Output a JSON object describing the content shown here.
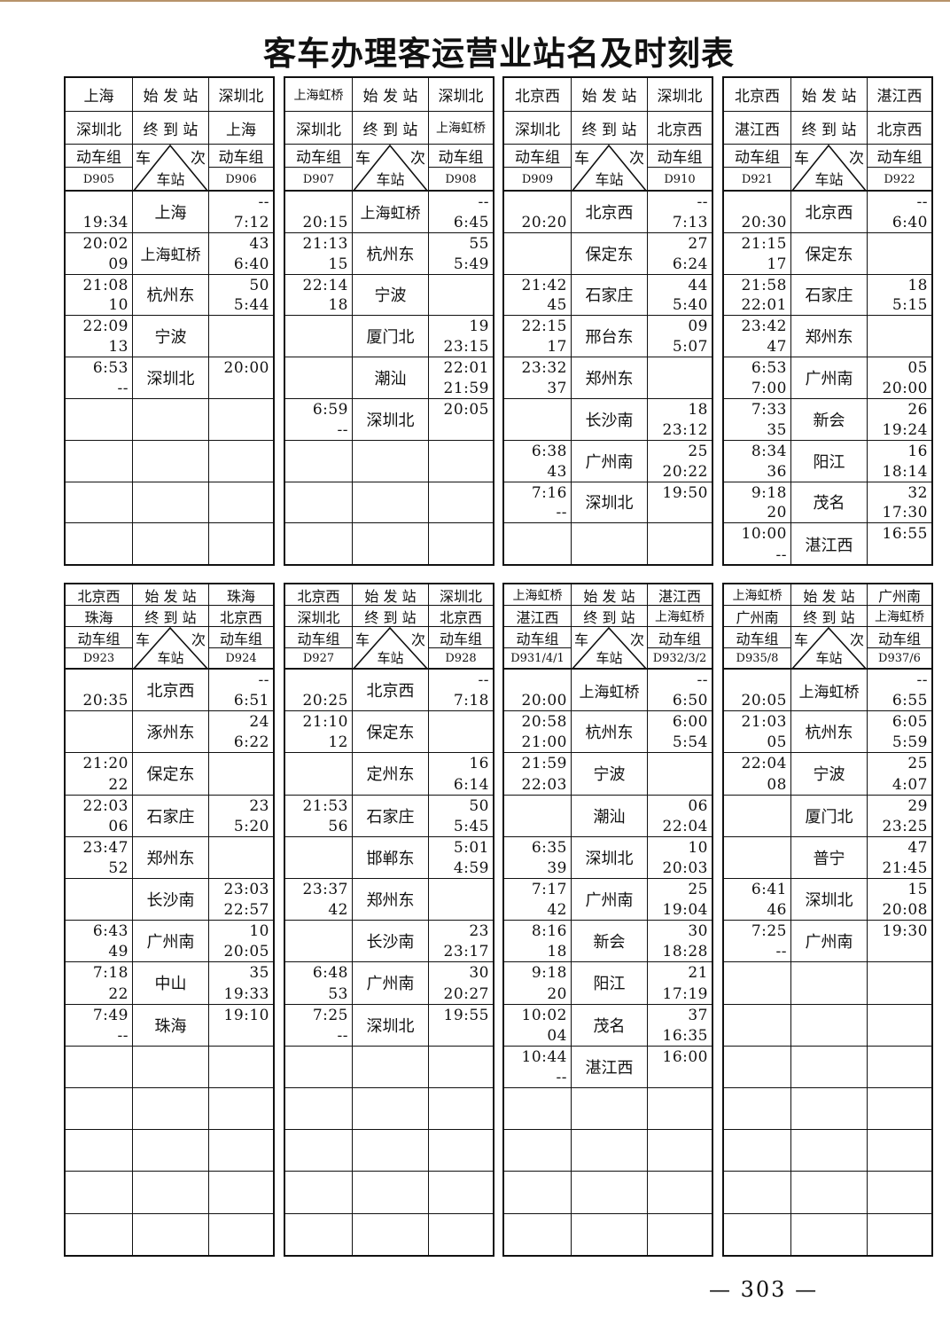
{
  "page": {
    "title": "客车办理客运营业站名及时刻表",
    "page_number": "— 303 —",
    "accent_rule_color": "#b7936a"
  },
  "labels": {
    "origin": "始 发 站",
    "destination": "终 到 站",
    "emu": "动车组",
    "train": "车",
    "times": "次",
    "station": "车站"
  },
  "tables": [
    {
      "origin_left": "上海",
      "origin_right": "深圳北",
      "dest_left": "深圳北",
      "dest_right": "上海",
      "train_left": "D905",
      "train_right": "D906",
      "rows": [
        [
          "",
          "19:34",
          "上海",
          "--",
          "7:12"
        ],
        [
          "20:02",
          "09",
          "上海虹桥",
          "43",
          "6:40"
        ],
        [
          "21:08",
          "10",
          "杭州东",
          "50",
          "5:44"
        ],
        [
          "22:09",
          "13",
          "宁波",
          "",
          ""
        ],
        [
          "6:53",
          "--",
          "深圳北",
          "20:00",
          ""
        ]
      ]
    },
    {
      "origin_left": "上海虹桥",
      "origin_right": "深圳北",
      "dest_left": "深圳北",
      "dest_right": "上海虹桥",
      "train_left": "D907",
      "train_right": "D908",
      "rows": [
        [
          "",
          "20:15",
          "上海虹桥",
          "--",
          "6:45"
        ],
        [
          "21:13",
          "15",
          "杭州东",
          "55",
          "5:49"
        ],
        [
          "22:14",
          "18",
          "宁波",
          "",
          ""
        ],
        [
          "",
          "",
          "厦门北",
          "19",
          "23:15"
        ],
        [
          "",
          "",
          "潮汕",
          "22:01",
          "21:59"
        ],
        [
          "6:59",
          "--",
          "深圳北",
          "20:05",
          ""
        ]
      ]
    },
    {
      "origin_left": "北京西",
      "origin_right": "深圳北",
      "dest_left": "深圳北",
      "dest_right": "北京西",
      "train_left": "D909",
      "train_right": "D910",
      "rows": [
        [
          "",
          "20:20",
          "北京西",
          "--",
          "7:13"
        ],
        [
          "",
          "",
          "保定东",
          "27",
          "6:24"
        ],
        [
          "21:42",
          "45",
          "石家庄",
          "44",
          "5:40"
        ],
        [
          "22:15",
          "17",
          "邢台东",
          "09",
          "5:07"
        ],
        [
          "23:32",
          "37",
          "郑州东",
          "",
          ""
        ],
        [
          "",
          "",
          "长沙南",
          "18",
          "23:12"
        ],
        [
          "6:38",
          "43",
          "广州南",
          "25",
          "20:22"
        ],
        [
          "7:16",
          "--",
          "深圳北",
          "19:50",
          ""
        ]
      ]
    },
    {
      "origin_left": "北京西",
      "origin_right": "湛江西",
      "dest_left": "湛江西",
      "dest_right": "北京西",
      "train_left": "D921",
      "train_right": "D922",
      "rows": [
        [
          "",
          "20:30",
          "北京西",
          "--",
          "6:40"
        ],
        [
          "21:15",
          "17",
          "保定东",
          "",
          ""
        ],
        [
          "21:58",
          "22:01",
          "石家庄",
          "18",
          "5:15"
        ],
        [
          "23:42",
          "47",
          "郑州东",
          "",
          ""
        ],
        [
          "6:53",
          "7:00",
          "广州南",
          "05",
          "20:00"
        ],
        [
          "7:33",
          "35",
          "新会",
          "26",
          "19:24"
        ],
        [
          "8:34",
          "36",
          "阳江",
          "16",
          "18:14"
        ],
        [
          "9:18",
          "20",
          "茂名",
          "32",
          "17:30"
        ],
        [
          "10:00",
          "--",
          "湛江西",
          "16:55",
          ""
        ]
      ]
    },
    {
      "origin_left": "北京西",
      "origin_right": "珠海",
      "dest_left": "珠海",
      "dest_right": "北京西",
      "train_left": "D923",
      "train_right": "D924",
      "rows": [
        [
          "",
          "20:35",
          "北京西",
          "--",
          "6:51"
        ],
        [
          "",
          "",
          "涿州东",
          "24",
          "6:22"
        ],
        [
          "21:20",
          "22",
          "保定东",
          "",
          ""
        ],
        [
          "22:03",
          "06",
          "石家庄",
          "23",
          "5:20"
        ],
        [
          "23:47",
          "52",
          "郑州东",
          "",
          ""
        ],
        [
          "",
          "",
          "长沙南",
          "23:03",
          "22:57"
        ],
        [
          "6:43",
          "49",
          "广州南",
          "10",
          "20:05"
        ],
        [
          "7:18",
          "22",
          "中山",
          "35",
          "19:33"
        ],
        [
          "7:49",
          "--",
          "珠海",
          "19:10",
          ""
        ]
      ]
    },
    {
      "origin_left": "北京西",
      "origin_right": "深圳北",
      "dest_left": "深圳北",
      "dest_right": "北京西",
      "train_left": "D927",
      "train_right": "D928",
      "rows": [
        [
          "",
          "20:25",
          "北京西",
          "--",
          "7:18"
        ],
        [
          "21:10",
          "12",
          "保定东",
          "",
          ""
        ],
        [
          "",
          "",
          "定州东",
          "16",
          "6:14"
        ],
        [
          "21:53",
          "56",
          "石家庄",
          "50",
          "5:45"
        ],
        [
          "",
          "",
          "邯郸东",
          "5:01",
          "4:59"
        ],
        [
          "23:37",
          "42",
          "郑州东",
          "",
          ""
        ],
        [
          "",
          "",
          "长沙南",
          "23",
          "23:17"
        ],
        [
          "6:48",
          "53",
          "广州南",
          "30",
          "20:27"
        ],
        [
          "7:25",
          "--",
          "深圳北",
          "19:55",
          ""
        ]
      ]
    },
    {
      "origin_left": "上海虹桥",
      "origin_right": "湛江西",
      "dest_left": "湛江西",
      "dest_right": "上海虹桥",
      "train_left": "D931/4/1",
      "train_right": "D932/3/2",
      "rows": [
        [
          "",
          "20:00",
          "上海虹桥",
          "--",
          "6:50"
        ],
        [
          "20:58",
          "21:00",
          "杭州东",
          "6:00",
          "5:54"
        ],
        [
          "21:59",
          "22:03",
          "宁波",
          "",
          ""
        ],
        [
          "",
          "",
          "潮汕",
          "06",
          "22:04"
        ],
        [
          "6:35",
          "39",
          "深圳北",
          "10",
          "20:03"
        ],
        [
          "7:17",
          "42",
          "广州南",
          "25",
          "19:04"
        ],
        [
          "8:16",
          "18",
          "新会",
          "30",
          "18:28"
        ],
        [
          "9:18",
          "20",
          "阳江",
          "21",
          "17:19"
        ],
        [
          "10:02",
          "04",
          "茂名",
          "37",
          "16:35"
        ],
        [
          "10:44",
          "--",
          "湛江西",
          "16:00",
          ""
        ]
      ]
    },
    {
      "origin_left": "上海虹桥",
      "origin_right": "广州南",
      "dest_left": "广州南",
      "dest_right": "上海虹桥",
      "train_left": "D935/8",
      "train_right": "D937/6",
      "rows": [
        [
          "",
          "20:05",
          "上海虹桥",
          "--",
          "6:55"
        ],
        [
          "21:03",
          "05",
          "杭州东",
          "6:05",
          "5:59"
        ],
        [
          "22:04",
          "08",
          "宁波",
          "25",
          "4:07"
        ],
        [
          "",
          "",
          "厦门北",
          "29",
          "23:25"
        ],
        [
          "",
          "",
          "普宁",
          "47",
          "21:45"
        ],
        [
          "6:41",
          "46",
          "深圳北",
          "15",
          "20:08"
        ],
        [
          "7:25",
          "--",
          "广州南",
          "19:30",
          ""
        ]
      ]
    }
  ]
}
